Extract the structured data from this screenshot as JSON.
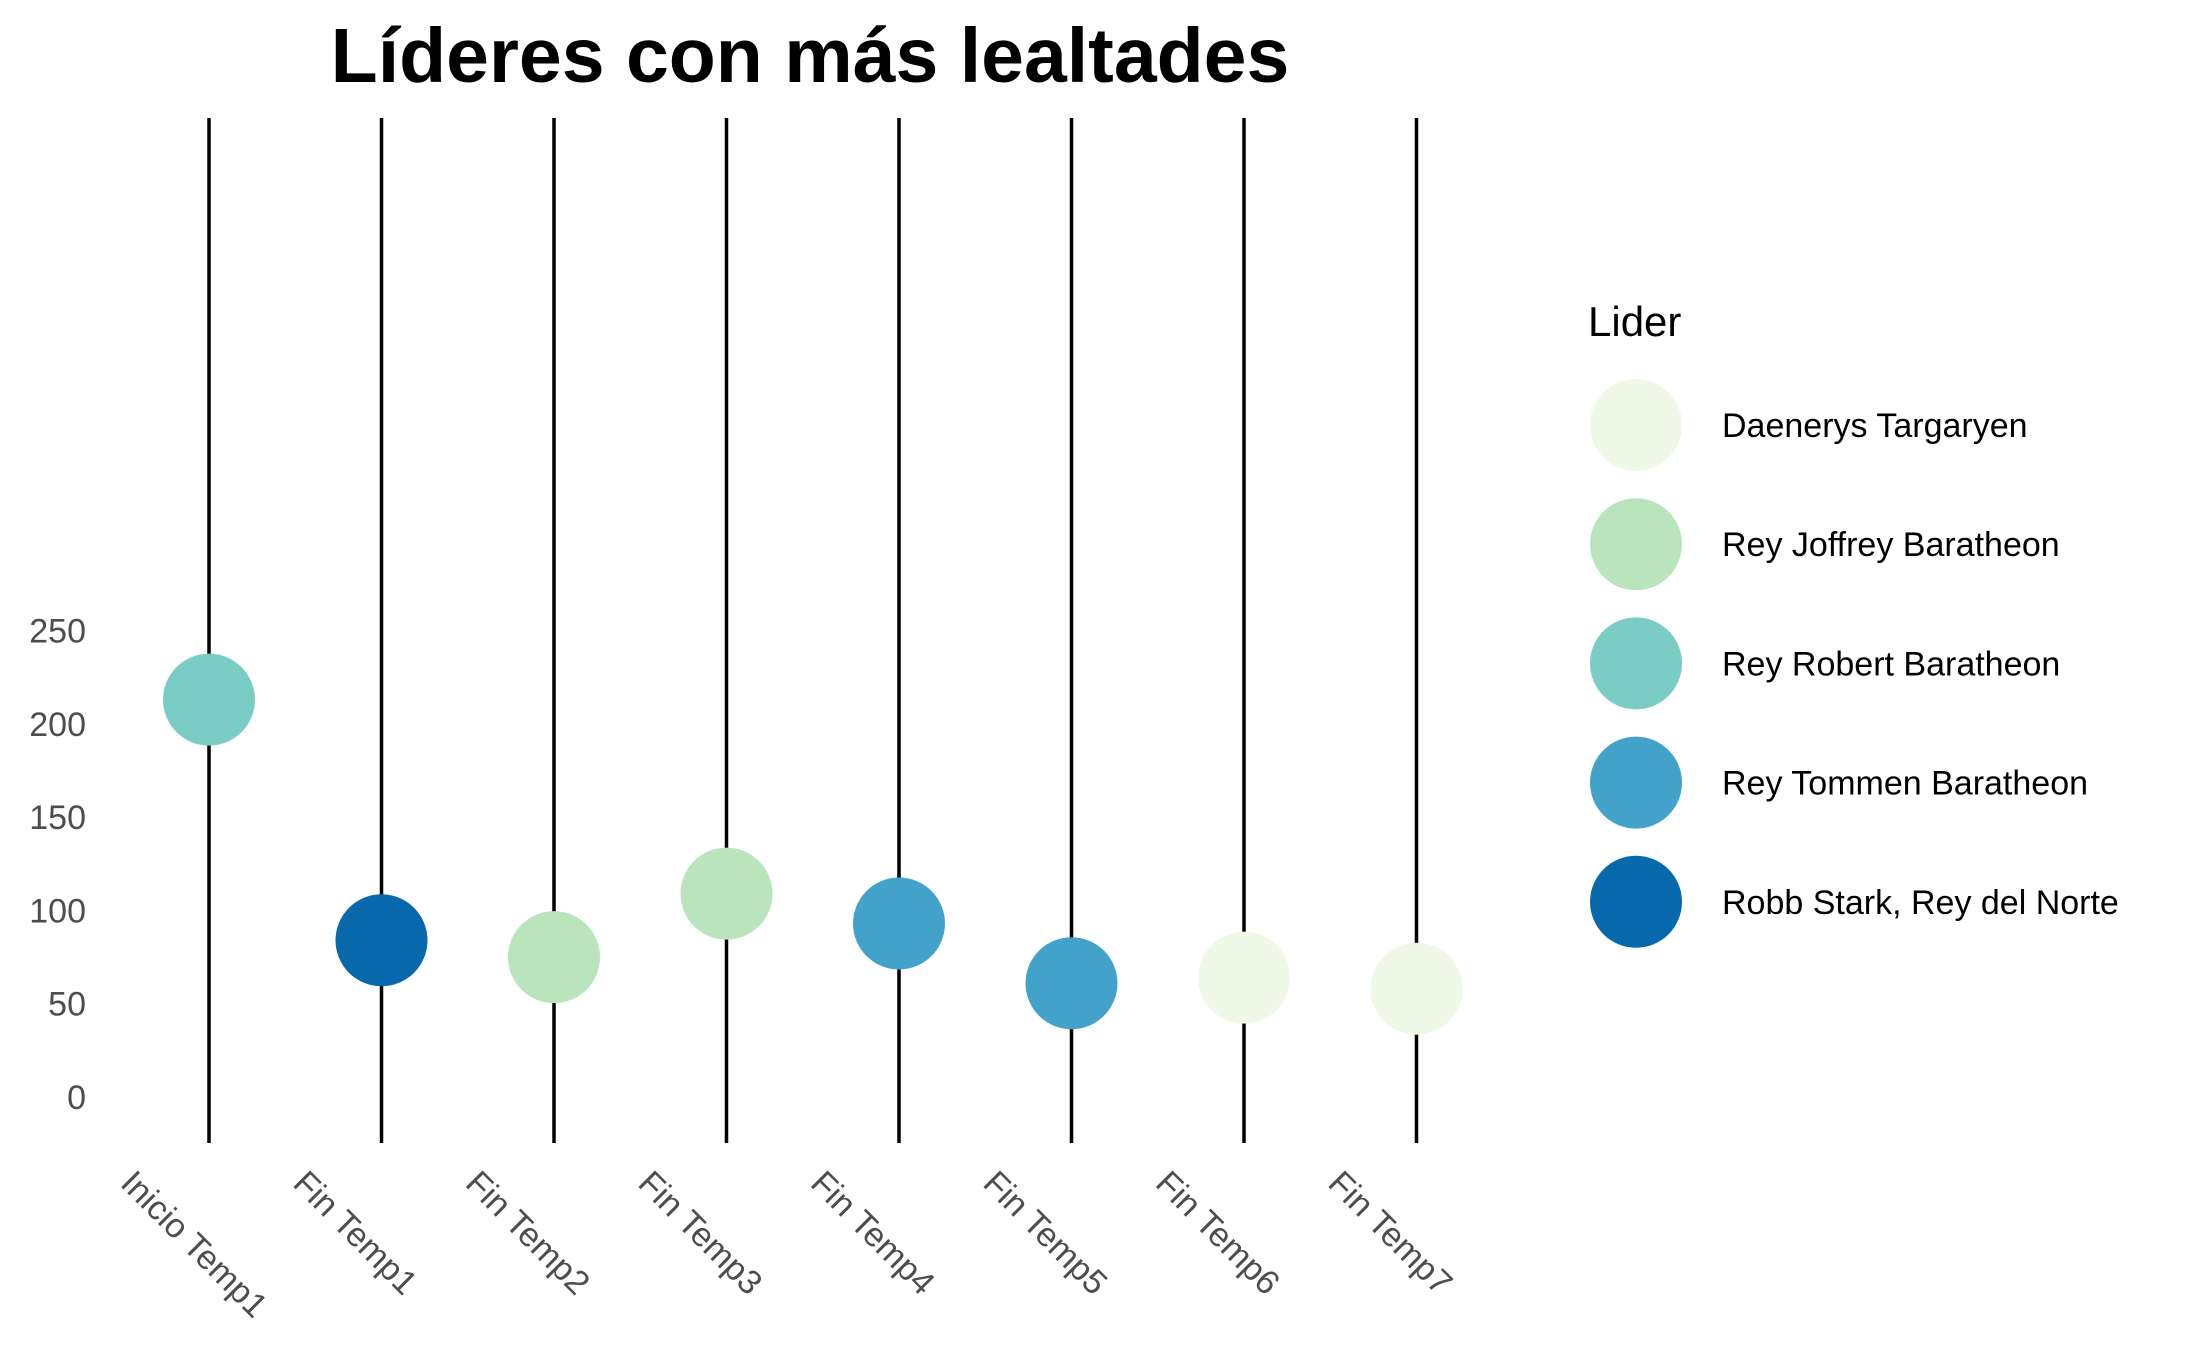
{
  "chart_data": {
    "type": "scatter",
    "title": "Líderes con más lealtades",
    "xlabel": "",
    "ylabel": "",
    "categories": [
      "Inicio Temp1",
      "Fin Temp1",
      "Fin Temp2",
      "Fin Temp3",
      "Fin Temp4",
      "Fin Temp5",
      "Fin Temp6",
      "Fin Temp7"
    ],
    "y_ticks": [
      "0",
      "50",
      "100",
      "150",
      "200",
      "250"
    ],
    "ylim": [
      -13,
      263
    ],
    "grid": false,
    "legend": {
      "title": "Lider",
      "position": "right",
      "entries": [
        {
          "label": "Daenerys Targaryen",
          "color": "#f0f9e8"
        },
        {
          "label": "Rey Joffrey Baratheon",
          "color": "#bae4bc"
        },
        {
          "label": "Rey Robert Baratheon",
          "color": "#7bccc4"
        },
        {
          "label": "Rey Tommen Baratheon",
          "color": "#43a2ca"
        },
        {
          "label": "Robb Stark, Rey del Norte",
          "color": "#0868ac"
        }
      ]
    },
    "points": [
      {
        "category": "Inicio Temp1",
        "leader": "Rey Robert Baratheon",
        "value": 213
      },
      {
        "category": "Fin Temp1",
        "leader": "Robb Stark, Rey del Norte",
        "value": 84
      },
      {
        "category": "Fin Temp2",
        "leader": "Rey Joffrey Baratheon",
        "value": 75
      },
      {
        "category": "Fin Temp3",
        "leader": "Rey Joffrey Baratheon",
        "value": 109
      },
      {
        "category": "Fin Temp4",
        "leader": "Rey Tommen Baratheon",
        "value": 93
      },
      {
        "category": "Fin Temp5",
        "leader": "Rey Tommen Baratheon",
        "value": 61
      },
      {
        "category": "Fin Temp6",
        "leader": "Daenerys Targaryen",
        "value": 64
      },
      {
        "category": "Fin Temp7",
        "leader": "Daenerys Targaryen",
        "value": 58
      }
    ]
  }
}
